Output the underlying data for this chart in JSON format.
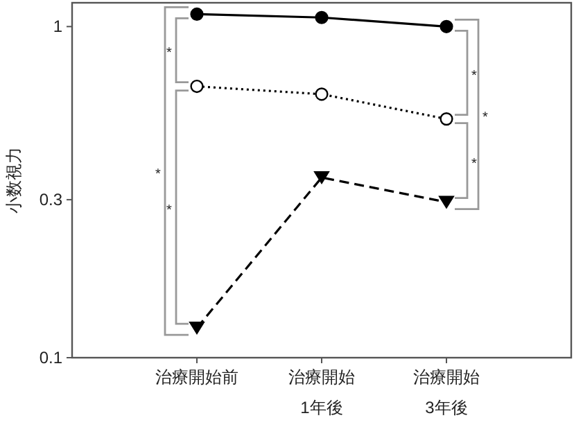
{
  "chart_data": {
    "type": "line",
    "ylabel": "小数視力",
    "categories": [
      "治療開始前",
      "治療開始\n1年後",
      "治療開始\n3年後"
    ],
    "series": [
      {
        "color": "#000000",
        "values": [
          1.09,
          1.065,
          1.0
        ],
        "marker": "circle",
        "line_style": "solid"
      },
      {
        "color": "#000000",
        "values": [
          0.66,
          0.625,
          0.526
        ],
        "marker": "circle",
        "line_style": "dotted"
      },
      {
        "color": "#000000",
        "values": [
          0.123,
          0.35,
          0.295
        ],
        "marker": "triangle",
        "line_style": "dashed"
      }
    ],
    "log": true,
    "ylim": [
      0.1,
      1.18
    ],
    "yticks": [
      0.1,
      0.3,
      1
    ],
    "grid": false,
    "annotations": [
      "*",
      "*",
      "*",
      "*",
      "*",
      "*"
    ]
  }
}
